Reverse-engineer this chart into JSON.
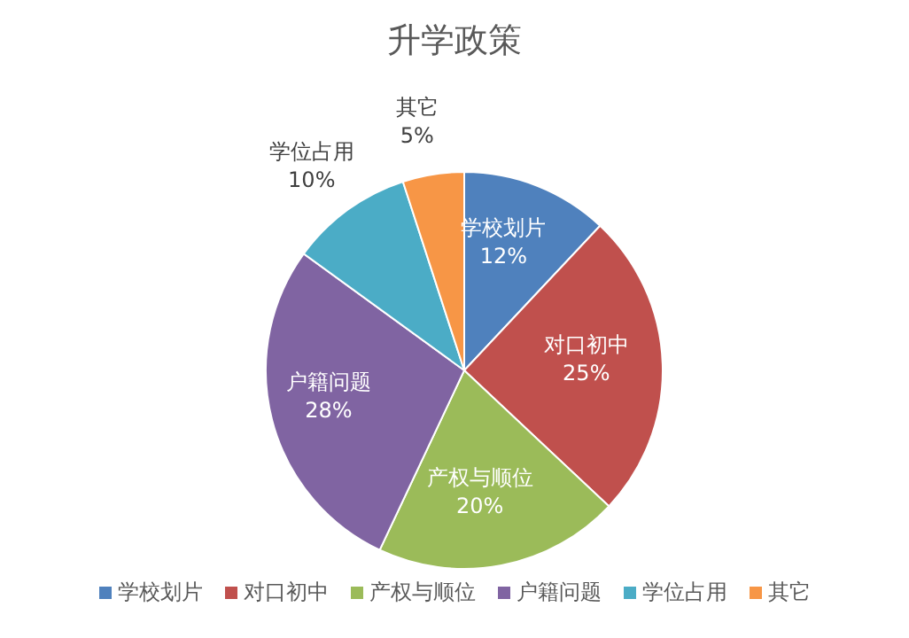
{
  "chart_data": {
    "type": "pie",
    "title": "升学政策",
    "categories": [
      "学校划片",
      "对口初中",
      "产权与顺位",
      "户籍问题",
      "学位占用",
      "其它"
    ],
    "values": [
      12,
      25,
      20,
      28,
      10,
      5
    ],
    "value_labels": [
      "12%",
      "25%",
      "20%",
      "28%",
      "10%",
      "5%"
    ],
    "colors": [
      "#4f81bd",
      "#c0504d",
      "#9bbb59",
      "#8064a2",
      "#4bacc6",
      "#f79646"
    ],
    "legend": "bottom"
  }
}
